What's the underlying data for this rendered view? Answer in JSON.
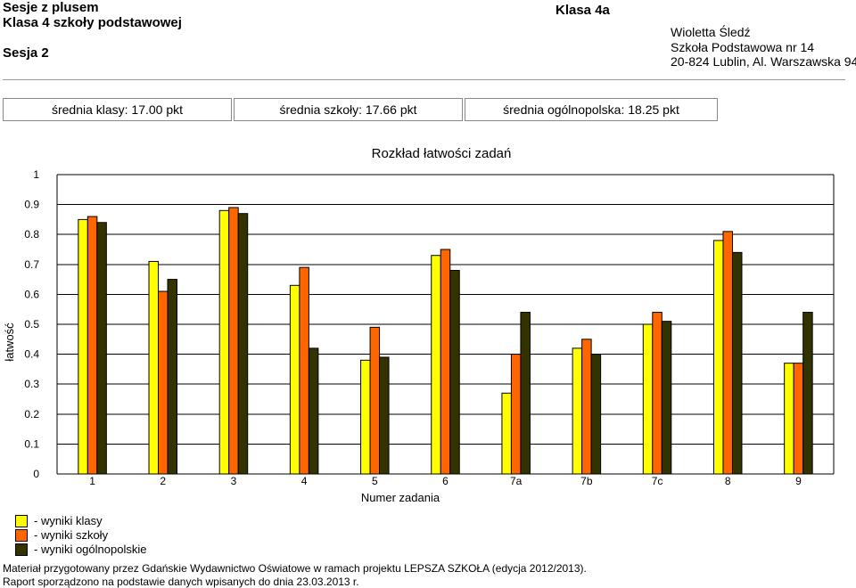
{
  "header": {
    "title_line1": "Sesje z plusem",
    "title_line2": "Klasa 4 szkoły podstawowej",
    "session": "Sesja 2",
    "class_name": "Klasa 4a",
    "teacher": "Wioletta Śledź",
    "school": "Szkoła Podstawowa nr 14",
    "address": "20-824 Lublin, Al. Warszawska 94"
  },
  "stats": {
    "class_avg": "średnia klasy: 17.00 pkt",
    "school_avg": "średnia szkoły: 17.66 pkt",
    "national_avg": "średnia ogólnopolska: 18.25 pkt"
  },
  "colors": {
    "class": "#ffff00",
    "school": "#ff6600",
    "national": "#333300"
  },
  "chart_data": {
    "type": "bar",
    "title": "Rozkład łatwości zadań",
    "xlabel": "Numer zadania",
    "ylabel": "łatwość",
    "ylim": [
      0,
      1
    ],
    "yticks": [
      "0",
      "0.1",
      "0.2",
      "0.3",
      "0.4",
      "0.5",
      "0.6",
      "0.7",
      "0.8",
      "0.9",
      "1"
    ],
    "grid": true,
    "categories": [
      "1",
      "2",
      "3",
      "4",
      "5",
      "6",
      "7a",
      "7b",
      "7c",
      "8",
      "9"
    ],
    "series": [
      {
        "name": "- wyniki klasy",
        "values": [
          0.85,
          0.71,
          0.88,
          0.63,
          0.38,
          0.73,
          0.27,
          0.42,
          0.5,
          0.78,
          0.37
        ]
      },
      {
        "name": "- wyniki szkoły",
        "values": [
          0.86,
          0.61,
          0.89,
          0.69,
          0.49,
          0.75,
          0.4,
          0.45,
          0.54,
          0.81,
          0.37
        ]
      },
      {
        "name": "- wyniki ogólnopolskie",
        "values": [
          0.84,
          0.65,
          0.87,
          0.42,
          0.39,
          0.68,
          0.54,
          0.4,
          0.51,
          0.74,
          0.54
        ]
      }
    ]
  },
  "footer": {
    "line1": "Materiał przygotowany przez Gdańskie Wydawnictwo Oświatowe w ramach projektu LEPSZA SZKOŁA (edycja 2012/2013).",
    "line2": "Raport sporządzono na podstawie danych wpisanych do dnia 23.03.2013 r."
  }
}
